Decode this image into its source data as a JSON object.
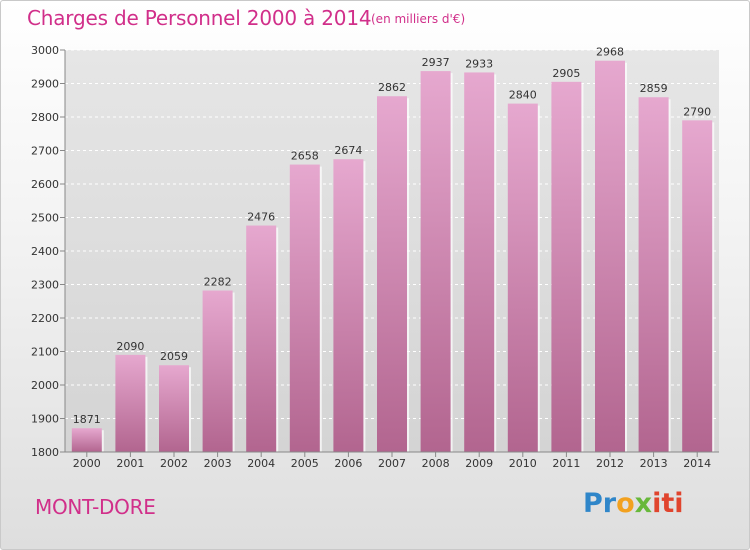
{
  "title": "Charges de Personnel 2000 à 2014",
  "unit": "(en milliers d'€)",
  "place": "MONT-DORE",
  "logo": {
    "p1": "Pr",
    "p2": "o",
    "p3": "x",
    "p4": "iti"
  },
  "colors": {
    "accent": "#d12f8a",
    "bar_top": "#e6a8cf",
    "bar_bottom": "#b2658f"
  },
  "chart_data": {
    "type": "bar",
    "categories": [
      "2000",
      "2001",
      "2002",
      "2003",
      "2004",
      "2005",
      "2006",
      "2007",
      "2008",
      "2009",
      "2010",
      "2011",
      "2012",
      "2013",
      "2014"
    ],
    "values": [
      1871,
      2090,
      2059,
      2282,
      2476,
      2658,
      2674,
      2862,
      2937,
      2933,
      2840,
      2905,
      2968,
      2859,
      2790
    ],
    "ylim": [
      1800,
      3000
    ],
    "yticks": [
      1800,
      1900,
      2000,
      2100,
      2200,
      2300,
      2400,
      2500,
      2600,
      2700,
      2800,
      2900,
      3000
    ],
    "grid": true,
    "data_labels": true
  }
}
